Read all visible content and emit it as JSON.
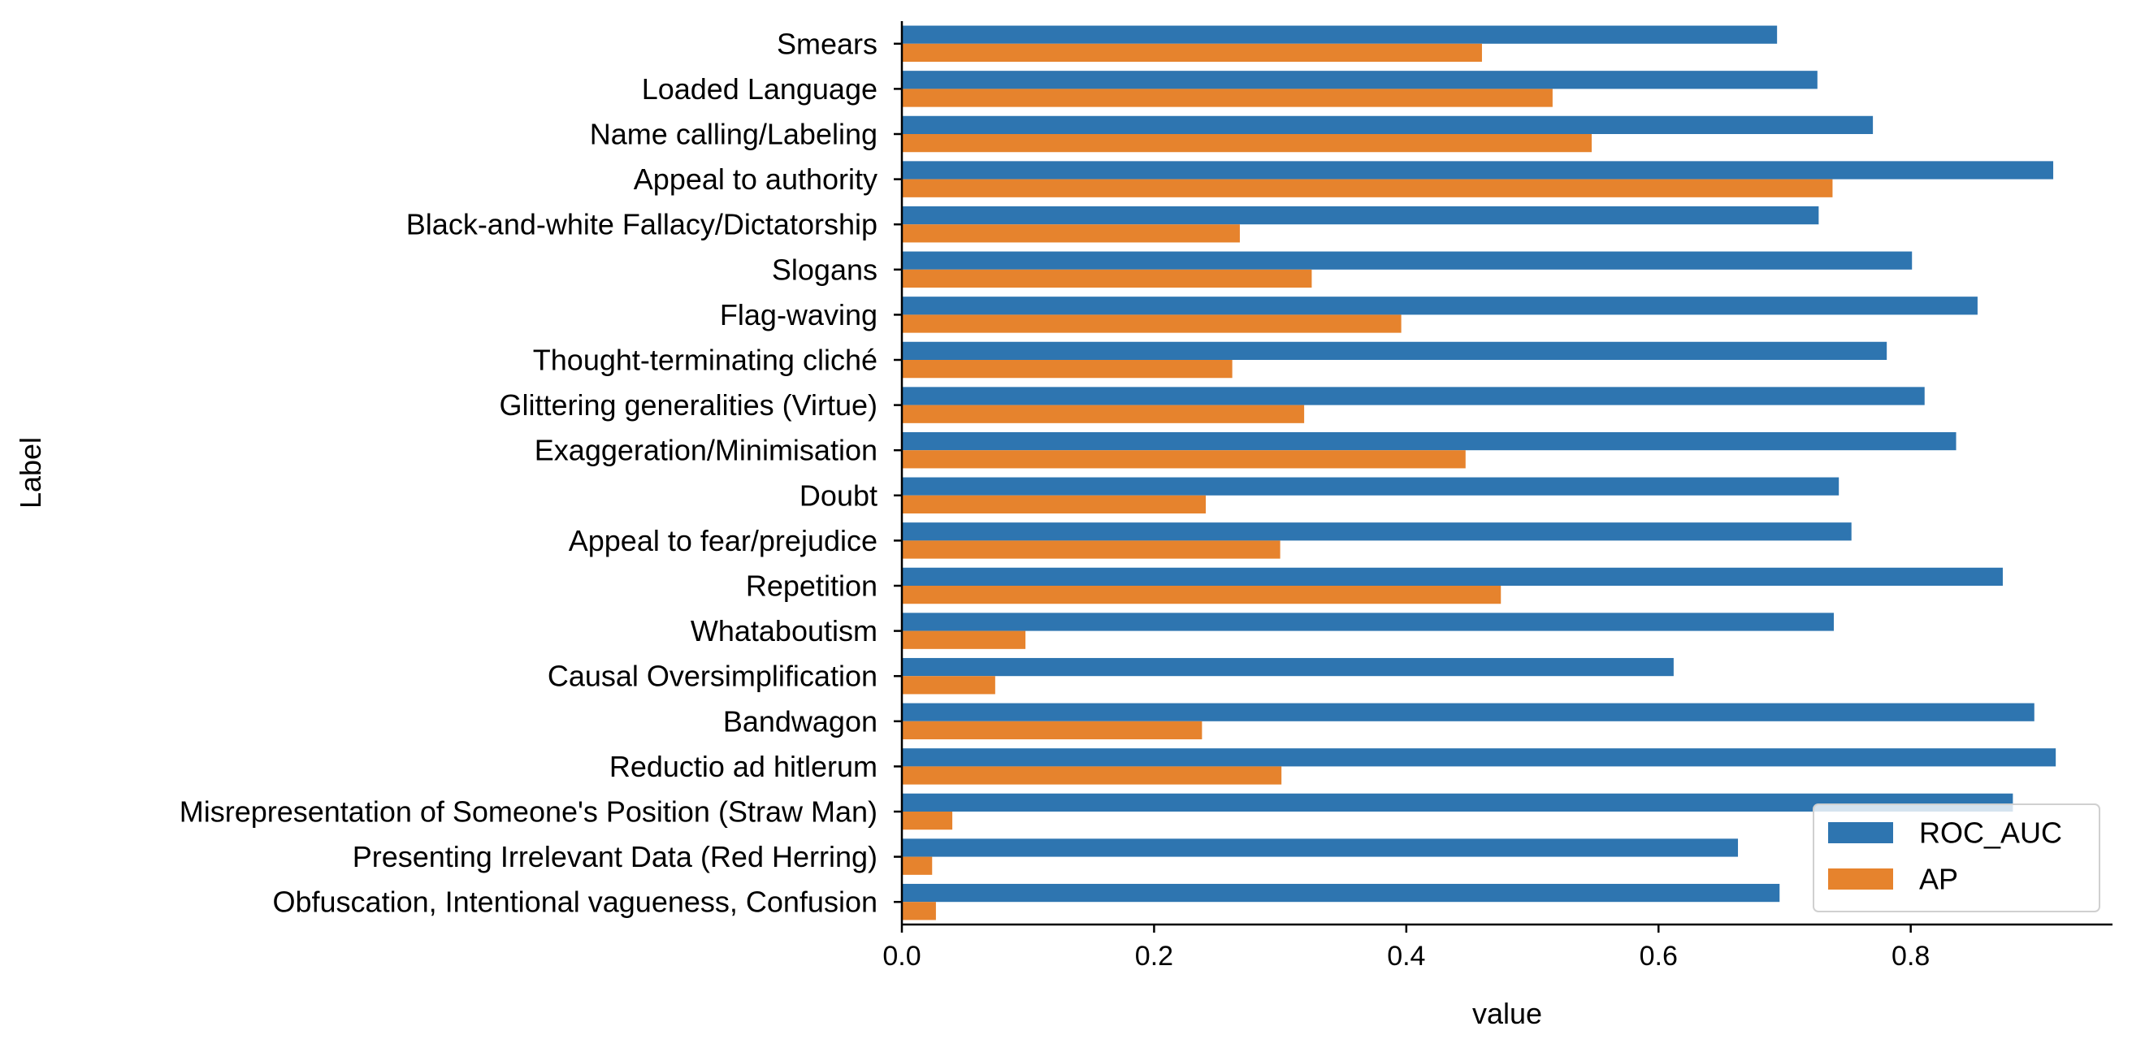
{
  "chart_data": {
    "type": "bar",
    "orientation": "horizontal",
    "title": "",
    "xlabel": "value",
    "ylabel": "Label",
    "xlim": [
      0,
      0.96
    ],
    "xticks": [
      "0.0",
      "0.2",
      "0.4",
      "0.6",
      "0.8"
    ],
    "grid": false,
    "legend_position": "lower-right",
    "categories": [
      "Smears",
      "Loaded Language",
      "Name calling/Labeling",
      "Appeal to authority",
      "Black-and-white Fallacy/Dictatorship",
      "Slogans",
      "Flag-waving",
      "Thought-terminating cliché",
      "Glittering generalities (Virtue)",
      "Exaggeration/Minimisation",
      "Doubt",
      "Appeal to fear/prejudice",
      "Repetition",
      "Whataboutism",
      "Causal Oversimplification",
      "Bandwagon",
      "Reductio ad hitlerum",
      "Misrepresentation of Someone's Position (Straw Man)",
      "Presenting Irrelevant Data (Red Herring)",
      "Obfuscation, Intentional vagueness, Confusion"
    ],
    "series": [
      {
        "name": "ROC_AUC",
        "color": "#2e75b0",
        "values": [
          0.694,
          0.726,
          0.77,
          0.913,
          0.727,
          0.801,
          0.853,
          0.781,
          0.811,
          0.836,
          0.743,
          0.753,
          0.873,
          0.739,
          0.612,
          0.898,
          0.915,
          0.881,
          0.663,
          0.696
        ]
      },
      {
        "name": "AP",
        "color": "#e6832d",
        "values": [
          0.46,
          0.516,
          0.547,
          0.738,
          0.268,
          0.325,
          0.396,
          0.262,
          0.319,
          0.447,
          0.241,
          0.3,
          0.475,
          0.098,
          0.074,
          0.238,
          0.301,
          0.04,
          0.024,
          0.027
        ]
      }
    ]
  }
}
